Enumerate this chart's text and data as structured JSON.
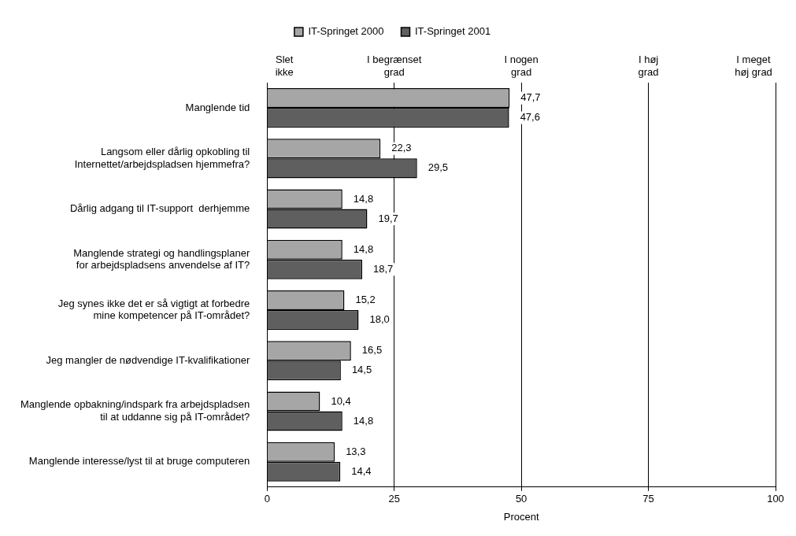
{
  "chart_data": {
    "type": "bar",
    "orientation": "horizontal",
    "xlabel": "Procent",
    "categories": [
      "Manglende tid",
      "Langsom eller dårlig opkobling til\nInternettet/arbejdspladsen hjemmefra?",
      "Dårlig adgang til IT-support  derhjemme",
      "Manglende strategi og handlingsplaner\nfor arbejdspladsens anvendelse af IT?",
      "Jeg synes ikke det er så vigtigt at forbedre\nmine kompetencer på IT-området?",
      "Jeg mangler de nødvendige IT-kvalifikationer",
      "Manglende opbakning/indspark fra arbejdspladsen\ntil at uddanne sig på IT-området?",
      "Manglende interesse/lyst til at bruge computeren"
    ],
    "series": [
      {
        "name": "IT-Springet 2000",
        "color": "#a6a6a6",
        "values": [
          47.7,
          22.3,
          14.8,
          14.8,
          15.2,
          16.5,
          10.4,
          13.3
        ],
        "value_labels": [
          "47,7",
          "22,3",
          "14,8",
          "14,8",
          "15,2",
          "16,5",
          "10,4",
          "13,3"
        ]
      },
      {
        "name": "IT-Springet 2001",
        "color": "#5f5f5f",
        "values": [
          47.6,
          29.5,
          19.7,
          18.7,
          18.0,
          14.5,
          14.8,
          14.4
        ],
        "value_labels": [
          "47,6",
          "29,5",
          "19,7",
          "18,7",
          "18,0",
          "14,5",
          "14,8",
          "14,4"
        ]
      }
    ],
    "xlim": [
      0,
      100
    ],
    "xticks": [
      0,
      25,
      50,
      75,
      100
    ],
    "annotations": [
      "Slet\nikke",
      "I begrænset\ngrad",
      "I nogen\ngrad",
      "I høj\ngrad",
      "I meget\nhøj grad"
    ],
    "grid": "x",
    "legend": "top"
  }
}
